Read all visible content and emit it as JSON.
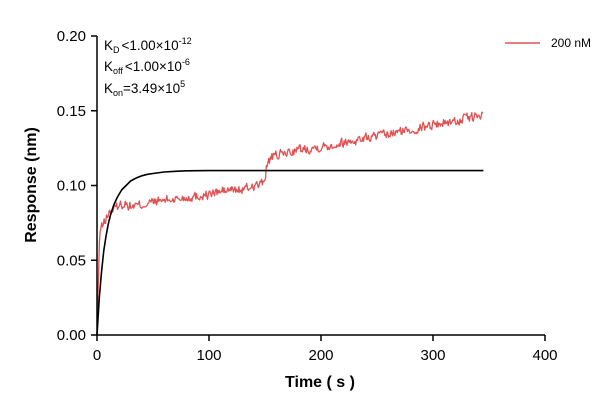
{
  "chart_data": {
    "type": "line",
    "title": "",
    "xlabel": "Time ( s )",
    "ylabel": "Response (nm)",
    "xlim": [
      0,
      400
    ],
    "ylim": [
      0,
      0.2
    ],
    "x_ticks": [
      0,
      100,
      200,
      300,
      400
    ],
    "x_tick_labels": [
      "0",
      "100",
      "200",
      "300",
      "400"
    ],
    "y_ticks": [
      0,
      0.05,
      0.1,
      0.15,
      0.2
    ],
    "y_tick_labels": [
      "0.00",
      "0.05",
      "0.10",
      "0.15",
      "0.20"
    ],
    "grid": false,
    "legend": {
      "placement": "top-right",
      "entries": [
        "200 nM"
      ]
    },
    "annotations": {
      "kd": {
        "sym": "K",
        "sub": "D",
        "rel": "<",
        "val": "1.00×10",
        "exp": "-12"
      },
      "koff": {
        "sym": "K",
        "sub": "off",
        "rel": "<",
        "val": "1.00×10",
        "exp": "-6"
      },
      "kon": {
        "sym": "K",
        "sub": "on",
        "rel": "=",
        "val": "3.49×10",
        "exp": "5"
      }
    },
    "series": [
      {
        "name": "200 nM",
        "color": "#e05252",
        "style": "noisy",
        "x": [
          0,
          1,
          2,
          3,
          5,
          8,
          12,
          16,
          20,
          25,
          30,
          40,
          50,
          60,
          70,
          80,
          90,
          100,
          110,
          120,
          130,
          140,
          148,
          150,
          152,
          155,
          160,
          170,
          180,
          190,
          200,
          210,
          220,
          230,
          240,
          250,
          260,
          270,
          280,
          290,
          300,
          310,
          320,
          330,
          335,
          340,
          345
        ],
        "y": [
          0.0,
          0.03,
          0.06,
          0.071,
          0.073,
          0.078,
          0.083,
          0.085,
          0.087,
          0.088,
          0.086,
          0.087,
          0.089,
          0.09,
          0.091,
          0.092,
          0.093,
          0.094,
          0.096,
          0.097,
          0.097,
          0.1,
          0.101,
          0.106,
          0.115,
          0.118,
          0.12,
          0.122,
          0.124,
          0.125,
          0.126,
          0.127,
          0.129,
          0.13,
          0.132,
          0.133,
          0.134,
          0.136,
          0.137,
          0.139,
          0.141,
          0.142,
          0.143,
          0.145,
          0.146,
          0.146,
          0.147
        ]
      },
      {
        "name": "",
        "color": "#000000",
        "style": "smooth",
        "x": [
          0,
          2,
          4,
          6,
          8,
          10,
          12,
          15,
          18,
          22,
          26,
          30,
          35,
          40,
          45,
          50,
          60,
          70,
          80,
          100,
          150,
          200,
          250,
          300,
          345
        ],
        "y": [
          0.0,
          0.024,
          0.042,
          0.056,
          0.066,
          0.074,
          0.08,
          0.087,
          0.092,
          0.097,
          0.1,
          0.103,
          0.105,
          0.1065,
          0.1075,
          0.108,
          0.109,
          0.1095,
          0.1098,
          0.11,
          0.11,
          0.11,
          0.11,
          0.11,
          0.11
        ]
      }
    ]
  }
}
